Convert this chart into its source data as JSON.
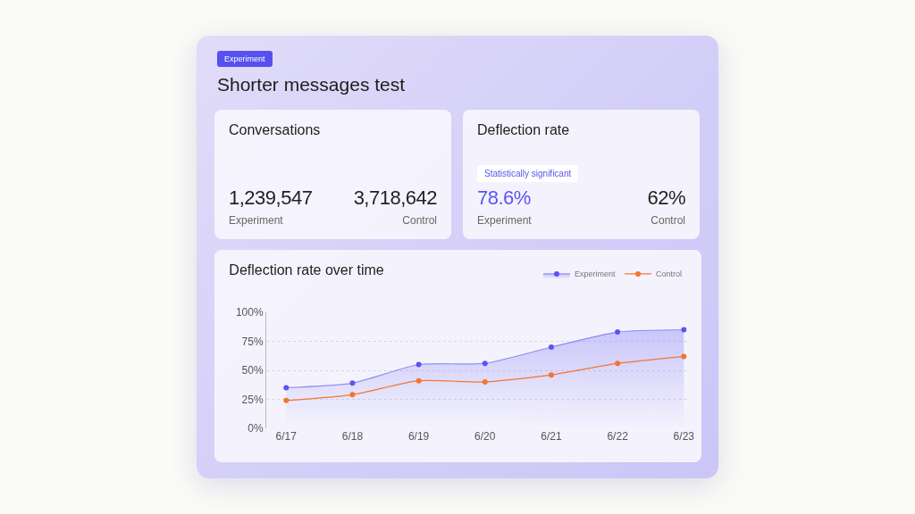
{
  "chart_data": [
    {
      "type": "other",
      "title": "Shorter messages test",
      "annotations": [
        "Experiment"
      ]
    },
    {
      "type": "other",
      "title": "Conversations",
      "annotations": [
        "1,239,547",
        "Experiment",
        "3,718,642",
        "Control"
      ]
    },
    {
      "type": "other",
      "title": "Deflection rate",
      "annotations": [
        "Statistically significant",
        "78.6%",
        "Experiment",
        "62%",
        "Control"
      ]
    },
    {
      "type": "line",
      "title": "Deflection rate over time",
      "categories": [
        "6/17",
        "6/18",
        "6/19",
        "6/20",
        "6/21",
        "6/22",
        "6/23"
      ],
      "series": [
        {
          "name": "Experiment",
          "type": "area",
          "color": "#5a55f2",
          "values": [
            35,
            39,
            55,
            56,
            70,
            83,
            85
          ]
        },
        {
          "name": "Control",
          "color": "#f47530",
          "values": [
            24,
            29,
            41,
            40,
            46,
            56,
            62
          ]
        }
      ],
      "ylim": [
        0,
        100
      ],
      "yticks": [
        {
          "value": 0,
          "label": "0%"
        },
        {
          "value": 25,
          "label": "25%"
        },
        {
          "value": 50,
          "label": "50%"
        },
        {
          "value": 75,
          "label": "75%"
        },
        {
          "value": 100,
          "label": "100%"
        }
      ],
      "grid": "y",
      "legend": "top right",
      "marker": "circle",
      "line_style": "solid"
    }
  ]
}
